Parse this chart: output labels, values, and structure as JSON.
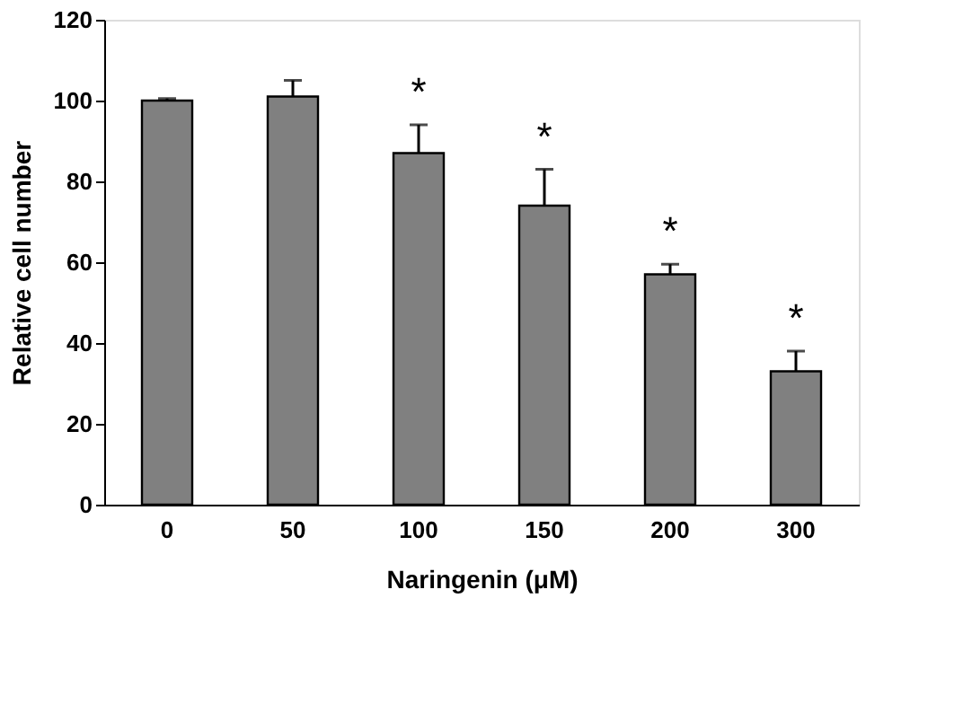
{
  "chart_data": {
    "type": "bar",
    "xlabel": "Naringenin (μM)",
    "ylabel": "Relative cell number",
    "categories": [
      "0",
      "50",
      "100",
      "150",
      "200",
      "300"
    ],
    "values": [
      100,
      101,
      87,
      74,
      57,
      33
    ],
    "errors": [
      [
        100,
        100.5
      ],
      [
        101,
        105
      ],
      [
        87,
        94
      ],
      [
        74,
        83
      ],
      [
        57,
        59.5
      ],
      [
        33,
        38
      ]
    ],
    "color": "#808080",
    "ylim": [
      0,
      120
    ],
    "yticks": [
      0,
      20,
      40,
      60,
      80,
      100,
      120
    ],
    "grid": false,
    "annotations": [
      {
        "text": "*",
        "x": "100",
        "y": 94
      },
      {
        "text": "*",
        "x": "150",
        "y": 83
      },
      {
        "text": "*",
        "x": "200",
        "y": 59.5
      },
      {
        "text": "*",
        "x": "300",
        "y": 38
      }
    ]
  }
}
